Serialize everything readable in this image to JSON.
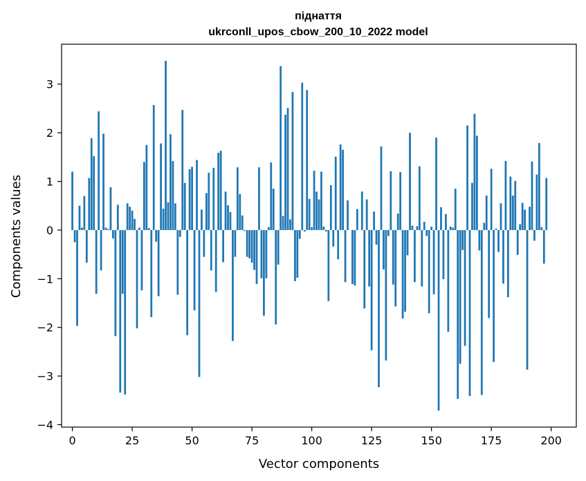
{
  "chart_data": {
    "type": "bar",
    "title_line1": "піднаття",
    "title_line2": "ukrconll_upos_cbow_200_10_2022 model",
    "xlabel": "Vector components",
    "ylabel": "Components values",
    "xlim": [
      -4.5,
      210.5
    ],
    "ylim": [
      -4.05,
      3.82
    ],
    "x_ticks": [
      0,
      25,
      50,
      75,
      100,
      125,
      150,
      175,
      200
    ],
    "x_tick_labels": [
      "0",
      "25",
      "50",
      "75",
      "100",
      "125",
      "150",
      "175",
      "200"
    ],
    "y_ticks": [
      -4,
      -3,
      -2,
      -1,
      0,
      1,
      2,
      3
    ],
    "y_tick_labels": [
      "−4",
      "−3",
      "−2",
      "−1",
      "0",
      "1",
      "2",
      "3"
    ],
    "bar_color": "#1f77b4",
    "values": [
      1.2,
      -0.25,
      -1.97,
      0.5,
      0.05,
      0.7,
      -0.67,
      1.07,
      1.89,
      1.52,
      -1.31,
      2.44,
      -0.83,
      1.98,
      0.05,
      0.02,
      0.88,
      -0.17,
      -2.18,
      0.52,
      -3.34,
      -1.31,
      -3.38,
      0.55,
      0.48,
      0.4,
      0.23,
      -2.02,
      0.05,
      -1.24,
      1.4,
      1.75,
      0.04,
      -1.79,
      2.57,
      -0.24,
      -1.36,
      1.78,
      0.44,
      3.48,
      0.57,
      1.97,
      1.42,
      0.55,
      -1.33,
      -0.14,
      2.47,
      0.97,
      -2.16,
      1.25,
      1.3,
      -1.65,
      1.44,
      -3.02,
      0.42,
      -0.55,
      0.76,
      1.18,
      -0.83,
      1.28,
      -1.27,
      1.59,
      1.63,
      -0.66,
      0.79,
      0.51,
      0.37,
      -2.28,
      -0.55,
      1.29,
      0.74,
      0.3,
      -0.02,
      -0.55,
      -0.58,
      -0.67,
      -0.82,
      -1.11,
      1.29,
      -0.99,
      -1.76,
      -0.99,
      0.06,
      1.39,
      0.85,
      -1.94,
      -0.71,
      3.37,
      0.29,
      2.37,
      2.51,
      0.22,
      2.84,
      -1.05,
      -0.98,
      -0.18,
      3.03,
      -0.03,
      2.88,
      0.64,
      0.06,
      1.22,
      0.79,
      0.63,
      1.2,
      0.07,
      -0.03,
      -1.46,
      0.92,
      -0.34,
      1.51,
      -0.6,
      1.76,
      1.65,
      -1.07,
      0.61,
      0.0,
      -1.11,
      -1.14,
      0.43,
      0.0,
      0.79,
      -1.61,
      0.63,
      -1.16,
      -2.47,
      0.38,
      -0.3,
      -3.23,
      1.72,
      -0.81,
      -2.68,
      -0.12,
      1.21,
      -1.12,
      -1.57,
      0.34,
      1.19,
      -1.82,
      -1.68,
      -0.52,
      2.0,
      0.09,
      -1.07,
      0.08,
      1.31,
      -1.16,
      0.17,
      -0.12,
      -1.71,
      0.07,
      -1.32,
      1.9,
      -3.71,
      0.47,
      -1.01,
      0.33,
      -2.09,
      0.07,
      0.05,
      0.85,
      -3.47,
      -2.75,
      -0.41,
      -2.38,
      2.15,
      -3.41,
      0.97,
      2.39,
      1.94,
      -0.42,
      -3.39,
      0.15,
      0.71,
      -1.81,
      1.26,
      -2.71,
      0.03,
      -0.45,
      0.55,
      -1.1,
      1.42,
      -1.38,
      1.1,
      0.71,
      1.01,
      -0.51,
      0.12,
      0.56,
      0.42,
      -2.87,
      0.48,
      1.41,
      -0.22,
      1.14,
      1.79,
      0.06,
      -0.69,
      1.07
    ]
  }
}
